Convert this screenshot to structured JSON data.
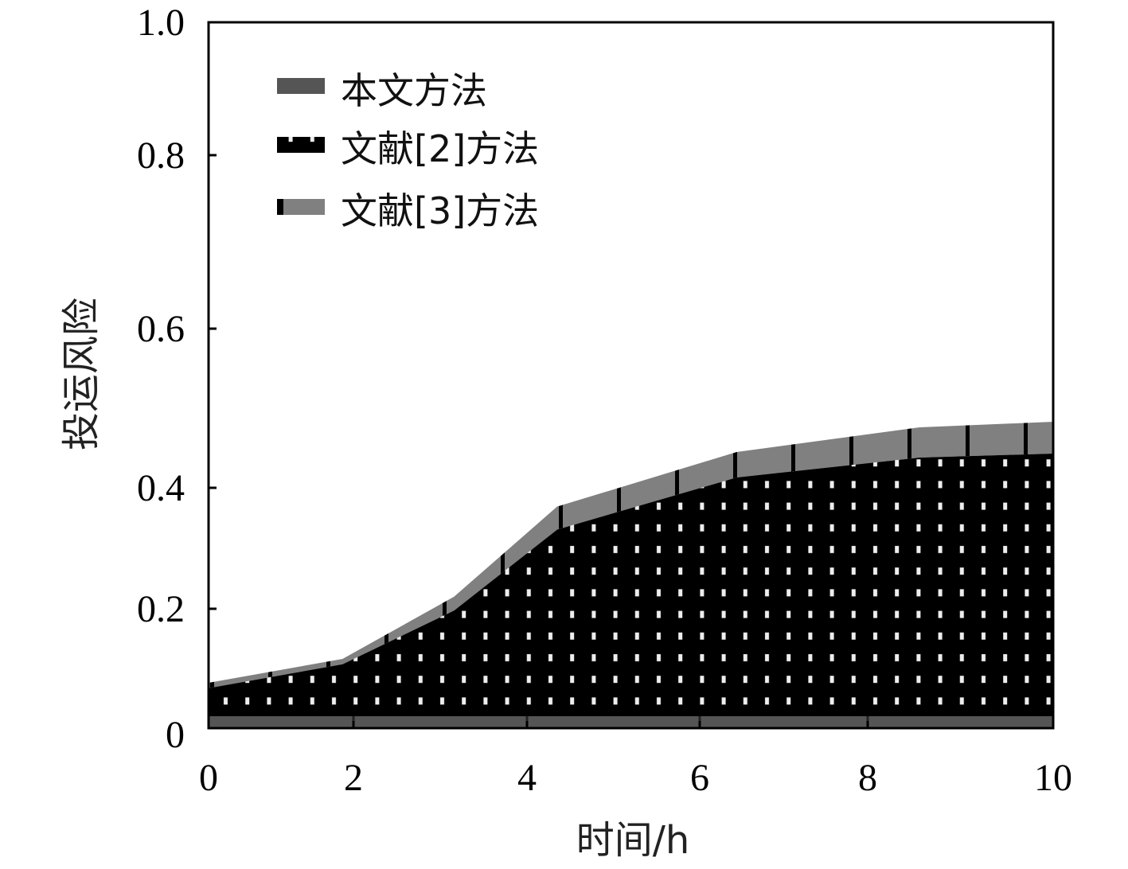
{
  "chart_data": {
    "type": "area",
    "title": "",
    "xlabel": "时间/h",
    "ylabel": "投运风险",
    "xlim": [
      0,
      10
    ],
    "ylim": [
      0,
      1.0
    ],
    "x_ticks": [
      "0",
      "2",
      "4",
      "6",
      "8",
      "10"
    ],
    "y_ticks": [
      "0",
      "0.2",
      "0.4",
      "0.6",
      "0.8",
      "1.0"
    ],
    "legend_position": "top-left",
    "grid": false,
    "series": [
      {
        "name": "本文方法",
        "color": "#555555",
        "x": [
          0,
          10
        ],
        "values": [
          0.02,
          0.02
        ]
      },
      {
        "name": "文献[2]方法",
        "color": "#000000",
        "x": [
          0,
          1.85,
          3.16,
          4.35,
          6.44,
          8.56,
          10
        ],
        "values": [
          0.067,
          0.107,
          0.197,
          0.331,
          0.413,
          0.438,
          0.443
        ]
      },
      {
        "name": "文献[3]方法",
        "color": "#808080",
        "x": [
          0,
          1.85,
          3.16,
          4.35,
          6.44,
          8.56,
          10
        ],
        "values": [
          0.076,
          0.116,
          0.22,
          0.369,
          0.445,
          0.476,
          0.483
        ]
      }
    ]
  }
}
